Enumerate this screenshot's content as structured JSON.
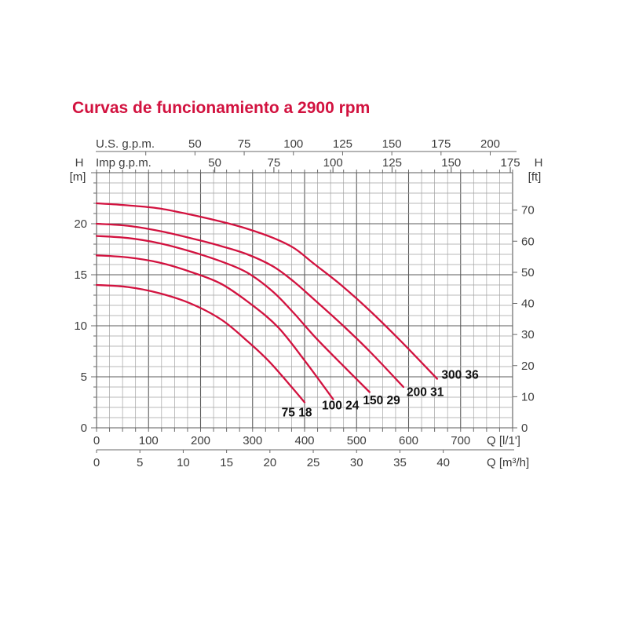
{
  "title": "Curvas de funcionamiento a 2900 rpm",
  "accent_color": "#d2123f",
  "axis_text_color": "#3d3d3d",
  "chart_data": {
    "type": "line",
    "title": "Curvas de funcionamiento a 2900 rpm",
    "grid": true,
    "x_axes": {
      "us_gpm": {
        "label": "U.S. g.p.m.",
        "ticks": [
          50,
          75,
          100,
          125,
          150,
          175,
          200
        ],
        "minor_ticks": [
          25,
          50,
          75,
          100,
          125,
          150,
          175,
          200
        ],
        "lmin_per_unit": 3.785
      },
      "imp_gpm": {
        "label": "Imp g.p.m.",
        "ticks": [
          50,
          75,
          100,
          125,
          150,
          175
        ],
        "lmin_per_unit": 4.546
      },
      "l_per_min": {
        "label": "Q [l/1']",
        "ticks": [
          0,
          100,
          200,
          300,
          400,
          500,
          600,
          700
        ],
        "range": [
          0,
          800
        ],
        "minor_step": 25
      },
      "m3_per_h": {
        "label": "Q [m³/h]",
        "ticks": [
          0,
          5,
          10,
          15,
          20,
          25,
          30,
          35,
          40
        ],
        "lmin_per_unit": 16.6667
      }
    },
    "y_axes": {
      "meters": {
        "title": "H",
        "unit": "[m]",
        "ticks": [
          0,
          5,
          10,
          15,
          20
        ],
        "range": [
          0,
          25
        ],
        "minor_step": 1,
        "major_step": 5
      },
      "feet": {
        "title": "H",
        "unit": "[ft]",
        "ticks": [
          0,
          10,
          20,
          30,
          40,
          50,
          60,
          70
        ],
        "m_per_unit": 0.3048
      }
    },
    "curve_color": "#d2123f",
    "series": [
      {
        "label": "75 18",
        "points": [
          [
            0,
            14.0
          ],
          [
            60,
            13.8
          ],
          [
            120,
            13.2
          ],
          [
            180,
            12.2
          ],
          [
            240,
            10.6
          ],
          [
            290,
            8.5
          ],
          [
            330,
            6.6
          ],
          [
            370,
            4.3
          ],
          [
            400,
            2.5
          ]
        ],
        "label_at": [
          385,
          1.5
        ]
      },
      {
        "label": "100 24",
        "points": [
          [
            0,
            16.9
          ],
          [
            60,
            16.7
          ],
          [
            120,
            16.2
          ],
          [
            180,
            15.3
          ],
          [
            240,
            14.1
          ],
          [
            300,
            12.0
          ],
          [
            350,
            9.8
          ],
          [
            400,
            6.6
          ],
          [
            455,
            2.8
          ]
        ],
        "label_at": [
          469,
          2.2
        ]
      },
      {
        "label": "150 29",
        "points": [
          [
            0,
            18.8
          ],
          [
            60,
            18.6
          ],
          [
            120,
            18.1
          ],
          [
            180,
            17.3
          ],
          [
            240,
            16.3
          ],
          [
            290,
            15.2
          ],
          [
            340,
            13.3
          ],
          [
            380,
            11.2
          ],
          [
            420,
            8.9
          ],
          [
            470,
            6.3
          ],
          [
            525,
            3.5
          ]
        ],
        "label_at": [
          548,
          2.7
        ]
      },
      {
        "label": "200 31",
        "points": [
          [
            0,
            20.0
          ],
          [
            60,
            19.8
          ],
          [
            120,
            19.3
          ],
          [
            180,
            18.6
          ],
          [
            240,
            17.8
          ],
          [
            290,
            17.0
          ],
          [
            340,
            15.8
          ],
          [
            380,
            14.3
          ],
          [
            420,
            12.5
          ],
          [
            470,
            10.2
          ],
          [
            525,
            7.5
          ],
          [
            590,
            4.0
          ]
        ],
        "label_at": [
          632,
          3.5
        ]
      },
      {
        "label": "300 36",
        "points": [
          [
            0,
            22.0
          ],
          [
            60,
            21.8
          ],
          [
            120,
            21.5
          ],
          [
            180,
            20.9
          ],
          [
            240,
            20.2
          ],
          [
            290,
            19.5
          ],
          [
            340,
            18.6
          ],
          [
            380,
            17.6
          ],
          [
            420,
            16.0
          ],
          [
            470,
            14.0
          ],
          [
            525,
            11.5
          ],
          [
            587,
            8.4
          ],
          [
            655,
            4.8
          ]
        ],
        "label_at": [
          699,
          5.2
        ]
      }
    ]
  }
}
